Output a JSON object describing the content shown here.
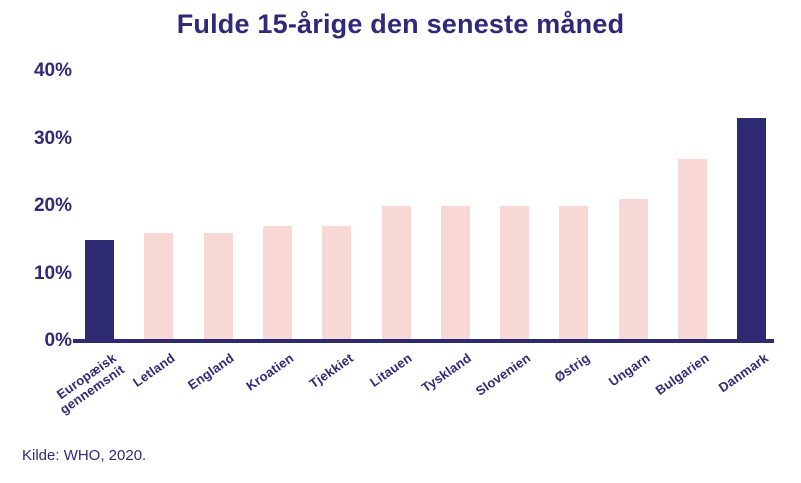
{
  "title": "Fulde 15-årige den seneste måned",
  "source": "Kilde: WHO, 2020.",
  "colors": {
    "navy_bar": "#2e2a72",
    "pink_bar": "#f8d8d4",
    "text_navy": "#2f2a78"
  },
  "chart_data": {
    "type": "bar",
    "title": "Fulde 15-årige den seneste måned",
    "categories": [
      "Europæisk\ngennemsnit",
      "Letland",
      "England",
      "Kroatien",
      "Tjekkiet",
      "Litauen",
      "Tyskland",
      "Slovenien",
      "Østrig",
      "Ungarn",
      "Bulgarien",
      "Danmark"
    ],
    "values": [
      15,
      16,
      16,
      17,
      17,
      20,
      20,
      20,
      20,
      21,
      27,
      33
    ],
    "unit": "%",
    "highlight_indices": [
      0,
      11
    ],
    "xlabel": "",
    "ylabel": "",
    "ylim": [
      0,
      40
    ],
    "yticks": [
      "0%",
      "10%",
      "20%",
      "30%",
      "40%"
    ],
    "ytick_values": [
      0,
      10,
      20,
      30,
      40
    ],
    "grid": false,
    "legend": null,
    "annotation": "Kilde: WHO, 2020."
  }
}
